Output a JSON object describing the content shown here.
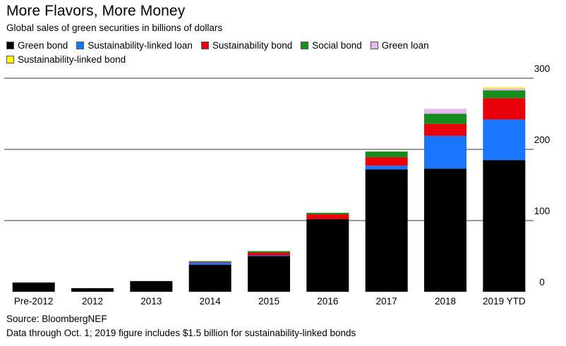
{
  "title": "More Flavors, More Money",
  "subtitle": "Global sales of green securities in billions of dollars",
  "source": "Source: BloombergNEF",
  "note": "Data through Oct. 1; 2019 figure includes $1.5 billion for sustainability-linked bonds",
  "chart_data": {
    "type": "bar",
    "stacked": true,
    "categories": [
      "Pre-2012",
      "2012",
      "2013",
      "2014",
      "2015",
      "2016",
      "2017",
      "2018",
      "2019 YTD"
    ],
    "ylim": [
      0,
      300
    ],
    "yticks": [
      0,
      100,
      200,
      300
    ],
    "grid": true,
    "y_axis_side": "right",
    "legend_position": "top",
    "series": [
      {
        "name": "Green bond",
        "color": "#000000",
        "values": [
          13,
          5,
          15,
          38,
          50,
          102,
          172,
          173,
          185
        ]
      },
      {
        "name": "Sustainability-linked loan",
        "color": "#1a75ff",
        "values": [
          0,
          0,
          0,
          3,
          1,
          0,
          5,
          46,
          57
        ]
      },
      {
        "name": "Sustainability bond",
        "color": "#e8000b",
        "values": [
          0,
          0,
          0,
          1,
          4,
          7,
          12,
          17,
          30
        ]
      },
      {
        "name": "Social bond",
        "color": "#158c1e",
        "values": [
          0,
          0,
          0,
          1,
          2,
          2,
          8,
          14,
          11
        ]
      },
      {
        "name": "Green loan",
        "color": "#e6b8f0",
        "values": [
          0,
          0,
          0,
          0,
          0,
          0,
          0,
          7,
          3
        ]
      },
      {
        "name": "Sustainability-linked bond",
        "color": "#ffff00",
        "values": [
          0,
          0,
          0,
          0,
          0,
          0,
          0,
          0,
          1.5
        ]
      }
    ]
  }
}
